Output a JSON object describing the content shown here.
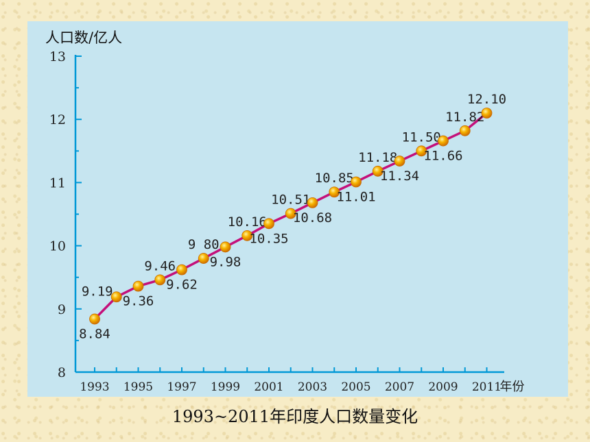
{
  "caption": "1993~2011年印度人口数量变化",
  "chart_data": {
    "type": "line",
    "ylabel": "人口数/亿人",
    "xlabel": "年份",
    "ylim": [
      8,
      13
    ],
    "y_ticks": [
      8,
      9,
      10,
      11,
      12,
      13
    ],
    "x_ticks": [
      "1993",
      "1995",
      "1997",
      "1999",
      "2001",
      "2003",
      "2005",
      "2007",
      "2009",
      "2011"
    ],
    "x_axis_suffix": "年份",
    "series": [
      {
        "color": "#c4107a",
        "marker_color": "#f5a000",
        "points": [
          {
            "x": 1993,
            "y": 8.84,
            "label": "8.84",
            "pos": "below"
          },
          {
            "x": 1994,
            "y": 9.19,
            "label": "9.19",
            "pos": "left"
          },
          {
            "x": 1995,
            "y": 9.36,
            "label": "9.36",
            "pos": "below"
          },
          {
            "x": 1996,
            "y": 9.46,
            "label": "9.46",
            "pos": "above"
          },
          {
            "x": 1997,
            "y": 9.62,
            "label": "9.62",
            "pos": "below"
          },
          {
            "x": 1998,
            "y": 9.8,
            "label": "9 80",
            "pos": "above"
          },
          {
            "x": 1999,
            "y": 9.98,
            "label": "9.98",
            "pos": "below"
          },
          {
            "x": 2000,
            "y": 10.16,
            "label": "10.16",
            "pos": "above"
          },
          {
            "x": 2001,
            "y": 10.35,
            "label": "10.35",
            "pos": "below"
          },
          {
            "x": 2002,
            "y": 10.51,
            "label": "10.51",
            "pos": "above"
          },
          {
            "x": 2003,
            "y": 10.68,
            "label": "10.68",
            "pos": "below"
          },
          {
            "x": 2004,
            "y": 10.85,
            "label": "10.85",
            "pos": "above"
          },
          {
            "x": 2005,
            "y": 11.01,
            "label": "11.01",
            "pos": "below"
          },
          {
            "x": 2006,
            "y": 11.18,
            "label": "11.18",
            "pos": "above"
          },
          {
            "x": 2007,
            "y": 11.34,
            "label": "11.34",
            "pos": "below"
          },
          {
            "x": 2008,
            "y": 11.5,
            "label": "11.50",
            "pos": "above"
          },
          {
            "x": 2009,
            "y": 11.66,
            "label": "11.66",
            "pos": "below"
          },
          {
            "x": 2010,
            "y": 11.82,
            "label": "11.82",
            "pos": "above"
          },
          {
            "x": 2011,
            "y": 12.1,
            "label": "12.10",
            "pos": "above"
          }
        ]
      }
    ],
    "grid": false
  }
}
